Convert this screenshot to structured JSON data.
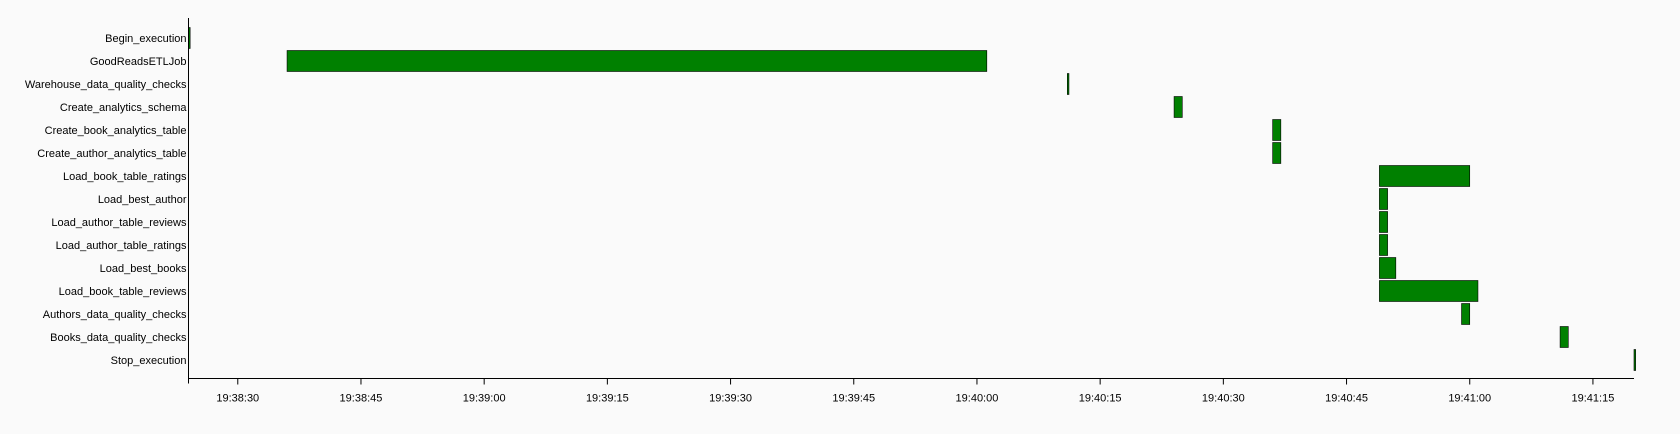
{
  "chart_data": {
    "type": "gantt",
    "title": "",
    "xlabel": "",
    "ylabel": "",
    "bar_color": "#008000",
    "bar_border_color": "#000000",
    "background": "#fafafa",
    "x_range": [
      "19:38:24",
      "19:41:20"
    ],
    "x_ticks": [
      "19:38:30",
      "19:38:45",
      "19:39:00",
      "19:39:15",
      "19:39:30",
      "19:39:45",
      "19:40:00",
      "19:40:15",
      "19:40:30",
      "19:40:45",
      "19:41:00",
      "19:41:15"
    ],
    "tasks": [
      {
        "name": "Begin_execution",
        "start": "19:38:24.0",
        "end": "19:38:24.2"
      },
      {
        "name": "GoodReadsETLJob",
        "start": "19:38:36.0",
        "end": "19:40:01.2"
      },
      {
        "name": "Warehouse_data_quality_checks",
        "start": "19:40:11.0",
        "end": "19:40:11.2"
      },
      {
        "name": "Create_analytics_schema",
        "start": "19:40:24.0",
        "end": "19:40:25.0"
      },
      {
        "name": "Create_book_analytics_table",
        "start": "19:40:36.0",
        "end": "19:40:37.0"
      },
      {
        "name": "Create_author_analytics_table",
        "start": "19:40:36.0",
        "end": "19:40:37.0"
      },
      {
        "name": "Load_book_table_ratings",
        "start": "19:40:49.0",
        "end": "19:41:00.0"
      },
      {
        "name": "Load_best_author",
        "start": "19:40:49.0",
        "end": "19:40:50.0"
      },
      {
        "name": "Load_author_table_reviews",
        "start": "19:40:49.0",
        "end": "19:40:50.0"
      },
      {
        "name": "Load_author_table_ratings",
        "start": "19:40:49.0",
        "end": "19:40:50.0"
      },
      {
        "name": "Load_best_books",
        "start": "19:40:49.0",
        "end": "19:40:51.0"
      },
      {
        "name": "Load_book_table_reviews",
        "start": "19:40:49.0",
        "end": "19:41:01.0"
      },
      {
        "name": "Authors_data_quality_checks",
        "start": "19:40:59.0",
        "end": "19:41:00.0"
      },
      {
        "name": "Books_data_quality_checks",
        "start": "19:41:11.0",
        "end": "19:41:12.0"
      },
      {
        "name": "Stop_execution",
        "start": "19:41:20.0",
        "end": "19:41:20.2"
      }
    ]
  }
}
